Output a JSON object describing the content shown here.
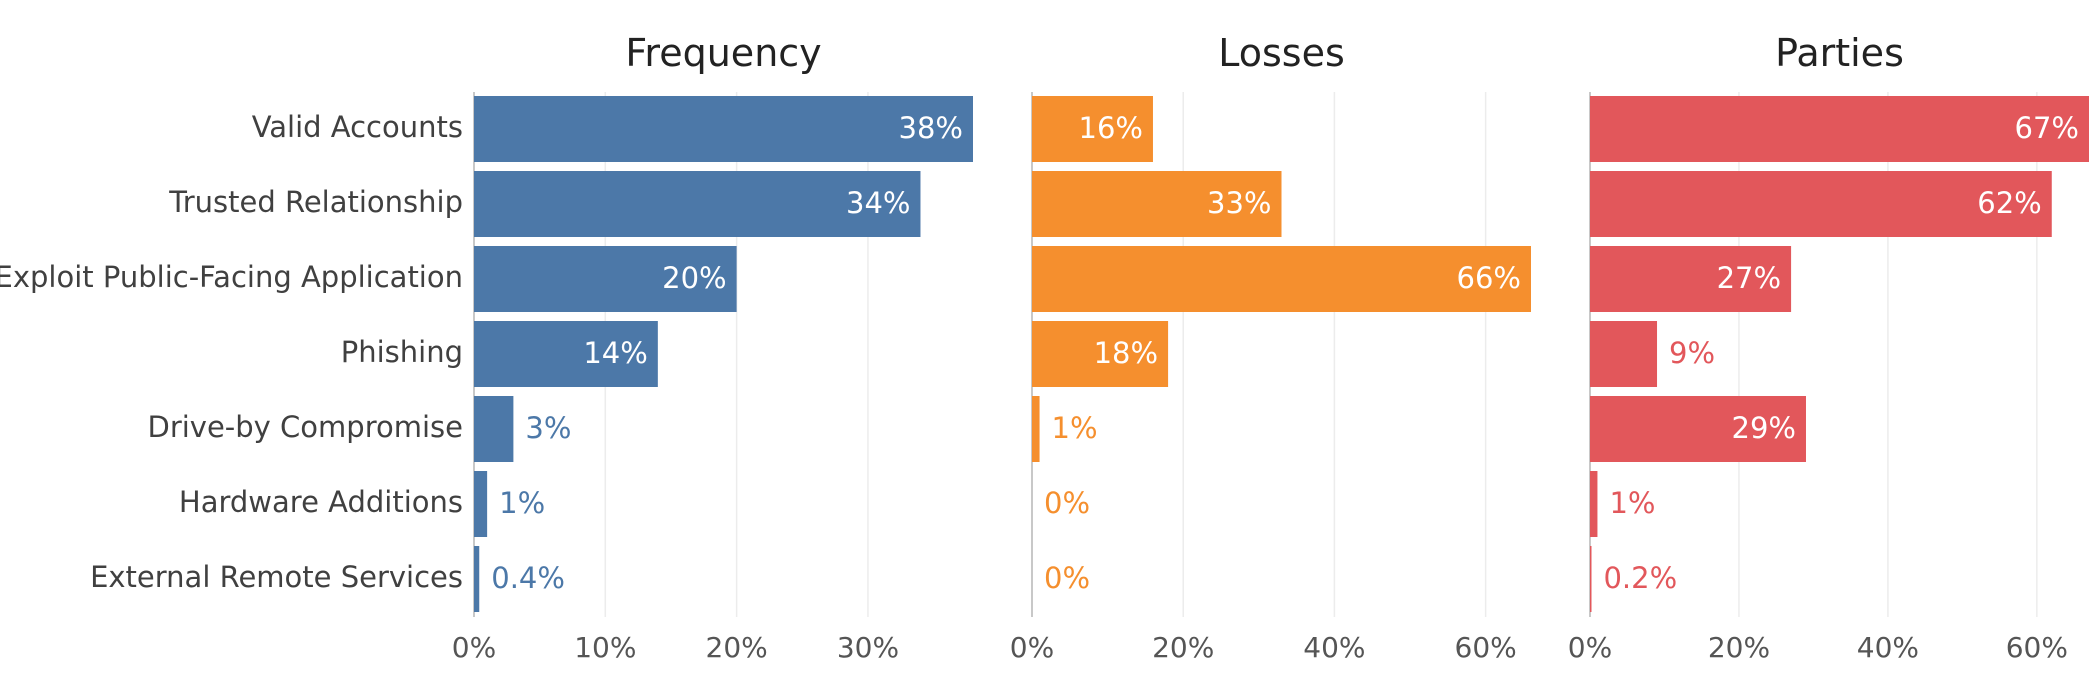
{
  "chart_data": {
    "type": "bar",
    "orientation": "horizontal",
    "categories": [
      "Valid Accounts",
      "Trusted Relationship",
      "Exploit Public-Facing Application",
      "Phishing",
      "Drive-by Compromise",
      "Hardware Additions",
      "External Remote Services"
    ],
    "panels": [
      {
        "title": "Frequency",
        "color": "#4c78a8",
        "values": [
          38,
          34,
          20,
          14,
          3,
          1,
          0.4
        ],
        "value_labels": [
          "38%",
          "34%",
          "20%",
          "14%",
          "3%",
          "1%",
          "0.4%"
        ],
        "xlim": [
          0,
          38
        ],
        "ticks": [
          0,
          10,
          20,
          30
        ],
        "tick_labels": [
          "0%",
          "10%",
          "20%",
          "30%"
        ]
      },
      {
        "title": "Losses",
        "color": "#f58f2e",
        "values": [
          16,
          33,
          66,
          18,
          1,
          0,
          0
        ],
        "value_labels": [
          "16%",
          "33%",
          "66%",
          "18%",
          "1%",
          "0%",
          "0%"
        ],
        "xlim": [
          0,
          66
        ],
        "ticks": [
          0,
          20,
          40,
          60
        ],
        "tick_labels": [
          "0%",
          "20%",
          "40%",
          "60%"
        ]
      },
      {
        "title": "Parties",
        "color": "#e2575b",
        "values": [
          67,
          62,
          27,
          9,
          29,
          1,
          0.2
        ],
        "value_labels": [
          "67%",
          "62%",
          "27%",
          "9%",
          "29%",
          "1%",
          "0.2%"
        ],
        "xlim": [
          0,
          67
        ],
        "ticks": [
          0,
          20,
          40,
          60
        ],
        "tick_labels": [
          "0%",
          "20%",
          "40%",
          "60%"
        ]
      }
    ],
    "grid": true,
    "legend": "none"
  }
}
